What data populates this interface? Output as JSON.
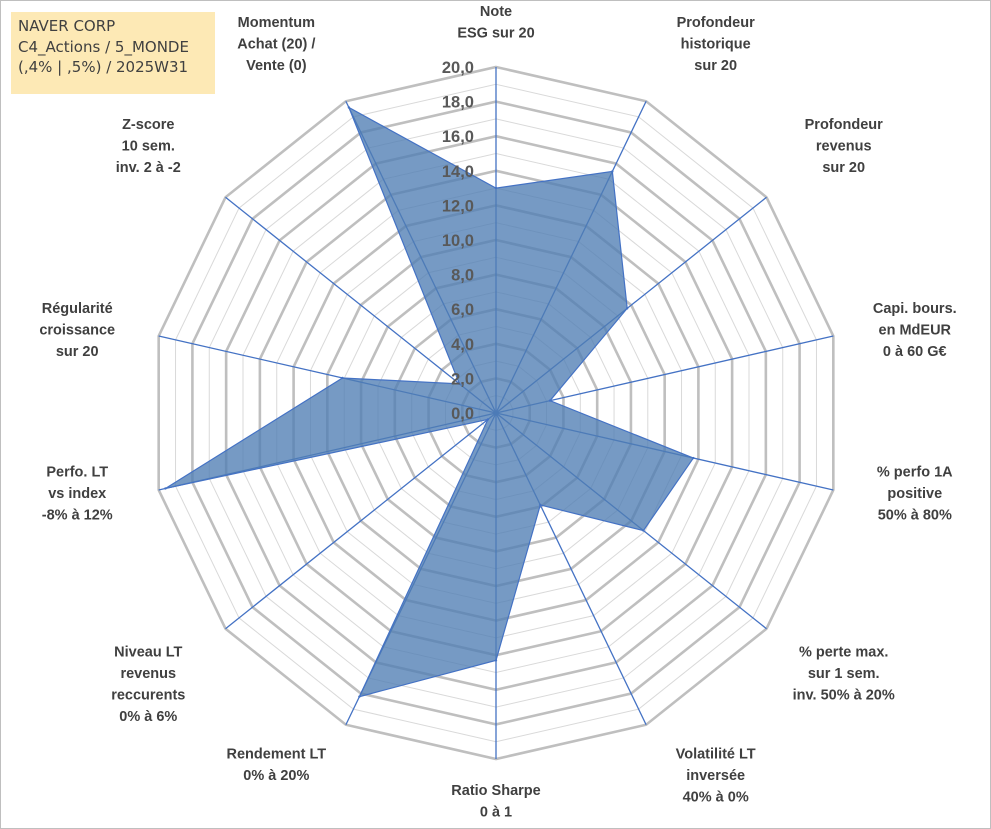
{
  "title_box": {
    "line1": "NAVER CORP",
    "line2": "C4_Actions / 5_MONDE",
    "line3": "(,4% | ,5%) / 2025W31"
  },
  "colors": {
    "fill": "#4f7db3",
    "spoke": "#4472c4",
    "grid_major": "#bfbfbf",
    "grid_minor": "#d9d9d9",
    "tick_text": "#595959",
    "label_text": "#404040",
    "title_bg": "#fde9b5"
  },
  "chart_data": {
    "type": "radar",
    "rmin": 0,
    "rmax": 20,
    "tick_step": 2,
    "ticks": [
      "0,0",
      "2,0",
      "4,0",
      "6,0",
      "8,0",
      "10,0",
      "12,0",
      "14,0",
      "16,0",
      "18,0",
      "20,0"
    ],
    "axes": [
      {
        "label": [
          "Note",
          "ESG sur 20"
        ],
        "value": 13.0
      },
      {
        "label": [
          "Profondeur",
          "historique",
          "sur 20"
        ],
        "value": 15.5
      },
      {
        "label": [
          "Profondeur",
          "revenus",
          "sur 20"
        ],
        "value": 9.7
      },
      {
        "label": [
          "Capi. bours.",
          "en MdEUR",
          "0 à 60 G€"
        ],
        "value": 3.2
      },
      {
        "label": [
          "% perfo 1A",
          "positive",
          "50% à 80%"
        ],
        "value": 11.7
      },
      {
        "label": [
          "% perte max.",
          "sur 1 sem.",
          "inv. 50% à 20%"
        ],
        "value": 10.9
      },
      {
        "label": [
          "Volatilité LT",
          "inversée",
          "40% à 0%"
        ],
        "value": 5.9
      },
      {
        "label": [
          "Ratio Sharpe",
          "0 à 1"
        ],
        "value": 14.3
      },
      {
        "label": [
          "Rendement LT",
          "0% à 20%"
        ],
        "value": 18.2
      },
      {
        "label": [
          "Niveau LT",
          "revenus",
          "reccurents",
          "0% à 6%"
        ],
        "value": 0.6
      },
      {
        "label": [
          "Perfo. LT",
          "vs index",
          "-8% à 12%"
        ],
        "value": 19.6
      },
      {
        "label": [
          "Régularité",
          "croissance",
          "sur 20"
        ],
        "value": 9.1
      },
      {
        "label": [
          "Z-score",
          "10 sem.",
          "inv. 2 à -2"
        ],
        "value": 2.7
      },
      {
        "label": [
          "Momentum",
          "Achat (20) /",
          "Vente (0)"
        ],
        "value": 19.6
      }
    ]
  }
}
